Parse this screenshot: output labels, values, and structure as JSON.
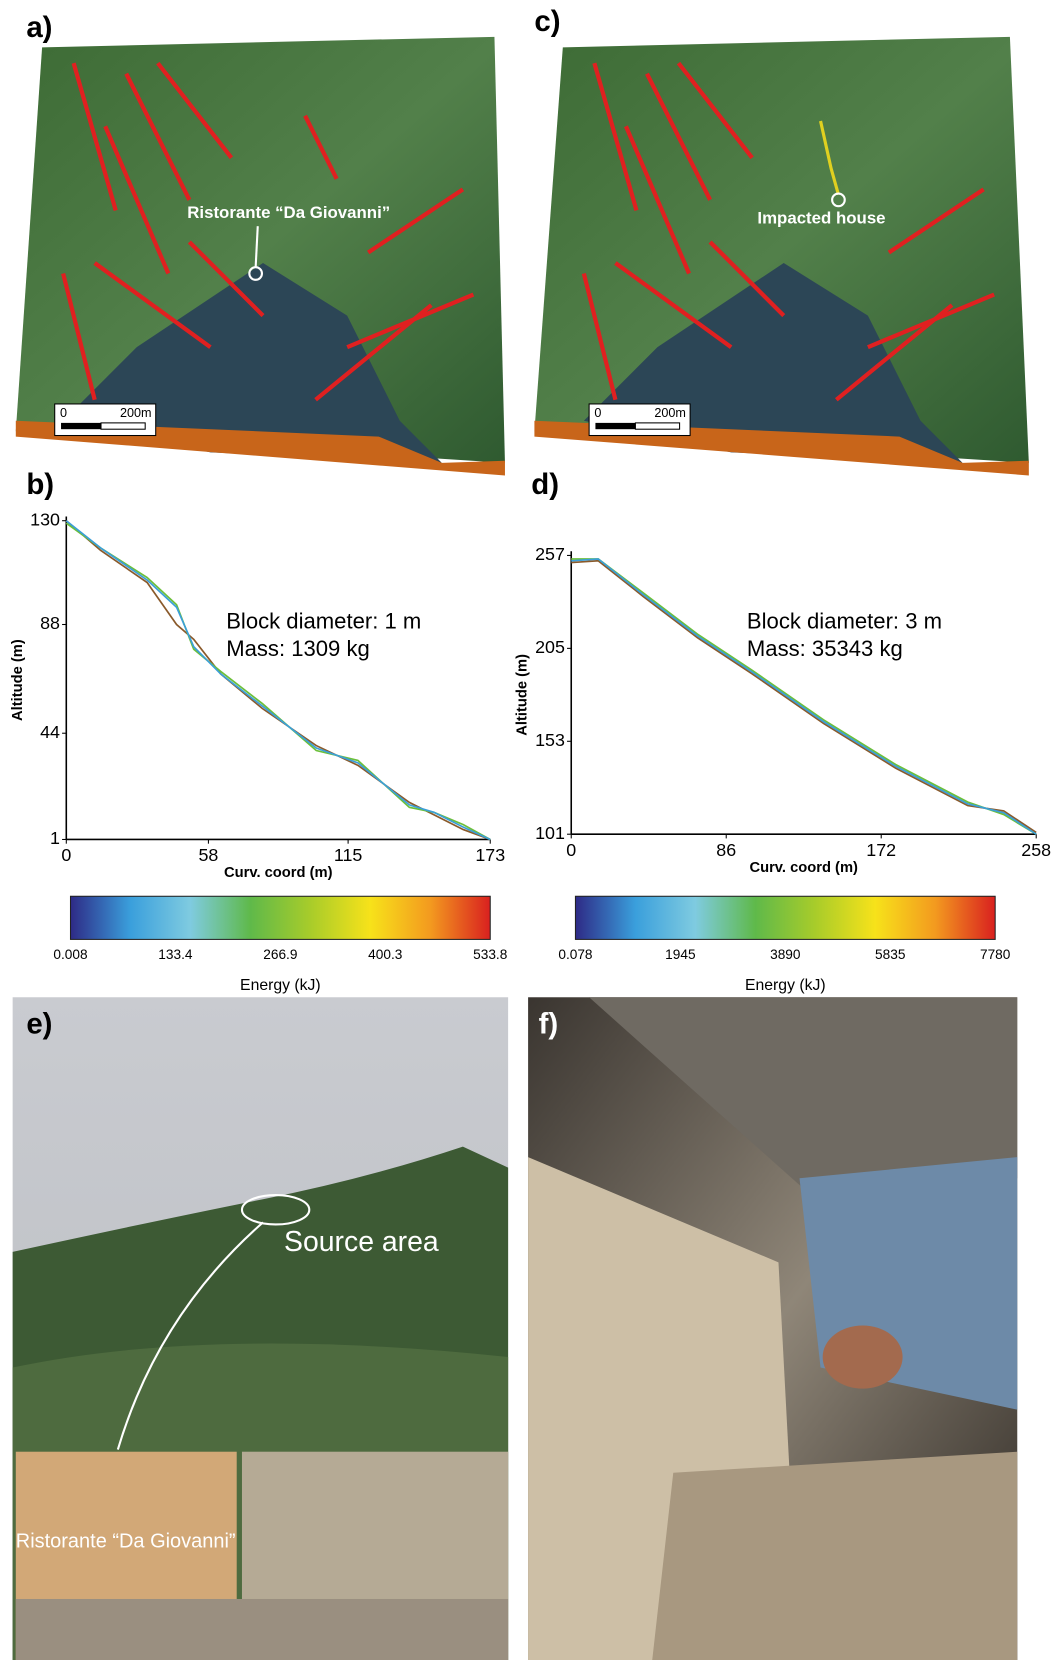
{
  "panels": {
    "a": {
      "label": "a)",
      "annotation": "Ristorante “Da Giovanni”",
      "scale": [
        "0",
        "200m"
      ]
    },
    "c": {
      "label": "c)",
      "annotation": "Impacted house",
      "scale": [
        "0",
        "200m"
      ]
    },
    "e": {
      "label": "e)",
      "annotations": [
        "Source area",
        "Ristorante “Da Giovanni”"
      ]
    },
    "f": {
      "label": "f)"
    }
  },
  "chart_data": [
    {
      "type": "line",
      "panel_label": "b)",
      "annotations": [
        "Block diameter: 1 m",
        "Mass: 1309 kg"
      ],
      "xlabel": "Curv. coord (m)",
      "ylabel": "Altitude (m)",
      "xlim": [
        0,
        173
      ],
      "xticks": [
        0,
        58,
        115,
        173
      ],
      "ylim": [
        1,
        130
      ],
      "yticks": [
        1,
        44,
        88,
        130
      ],
      "x": [
        0,
        14,
        33,
        45,
        52,
        63,
        80,
        102,
        119,
        140,
        150,
        162,
        173
      ],
      "series": [
        {
          "color": "#8a5a2b",
          "values": [
            130,
            118,
            105,
            88,
            82,
            68,
            54,
            39,
            31,
            16,
            11,
            5,
            1
          ]
        },
        {
          "color": "#6cbf3a",
          "values": [
            129,
            119,
            107,
            96,
            78,
            69,
            56,
            37,
            33,
            14,
            12,
            7,
            1
          ]
        },
        {
          "color": "#3b9fd8",
          "values": [
            130,
            119,
            106,
            95,
            79,
            68,
            55,
            38,
            32,
            15,
            12,
            6,
            1
          ]
        }
      ],
      "colorbar": {
        "label": "Energy (kJ)",
        "ticks": [
          0.008,
          133.4,
          266.9,
          400.3,
          533.8
        ],
        "colormap": [
          "#2e2a86",
          "#3a9fdc",
          "#7fcbe0",
          "#5fb94a",
          "#a8cc2a",
          "#f7e21a",
          "#f39a1f",
          "#d9201f"
        ]
      }
    },
    {
      "type": "line",
      "panel_label": "d)",
      "annotations": [
        "Block diameter: 3 m",
        "Mass: 35343 kg"
      ],
      "xlabel": "Curv. coord (m)",
      "ylabel": "Altitude (m)",
      "xlim": [
        0,
        258
      ],
      "xticks": [
        0,
        86,
        172,
        258
      ],
      "ylim": [
        101,
        257
      ],
      "yticks": [
        101,
        153,
        205,
        257
      ],
      "x": [
        0,
        15,
        40,
        70,
        100,
        140,
        180,
        220,
        240,
        258
      ],
      "series": [
        {
          "color": "#8a5a2b",
          "values": [
            253,
            254,
            234,
            211,
            191,
            163,
            138,
            117,
            114,
            102
          ]
        },
        {
          "color": "#6cbf3a",
          "values": [
            255,
            255,
            236,
            213,
            193,
            165,
            140,
            119,
            112,
            101
          ]
        },
        {
          "color": "#3b9fd8",
          "values": [
            254,
            255,
            235,
            212,
            192,
            164,
            139,
            118,
            113,
            101
          ]
        }
      ],
      "colorbar": {
        "label": "Energy (kJ)",
        "ticks": [
          0.078,
          1945,
          3890,
          5835,
          7780
        ],
        "colormap": [
          "#2e2a86",
          "#3a9fdc",
          "#7fcbe0",
          "#5fb94a",
          "#a8cc2a",
          "#f7e21a",
          "#f39a1f",
          "#d9201f"
        ]
      }
    }
  ]
}
